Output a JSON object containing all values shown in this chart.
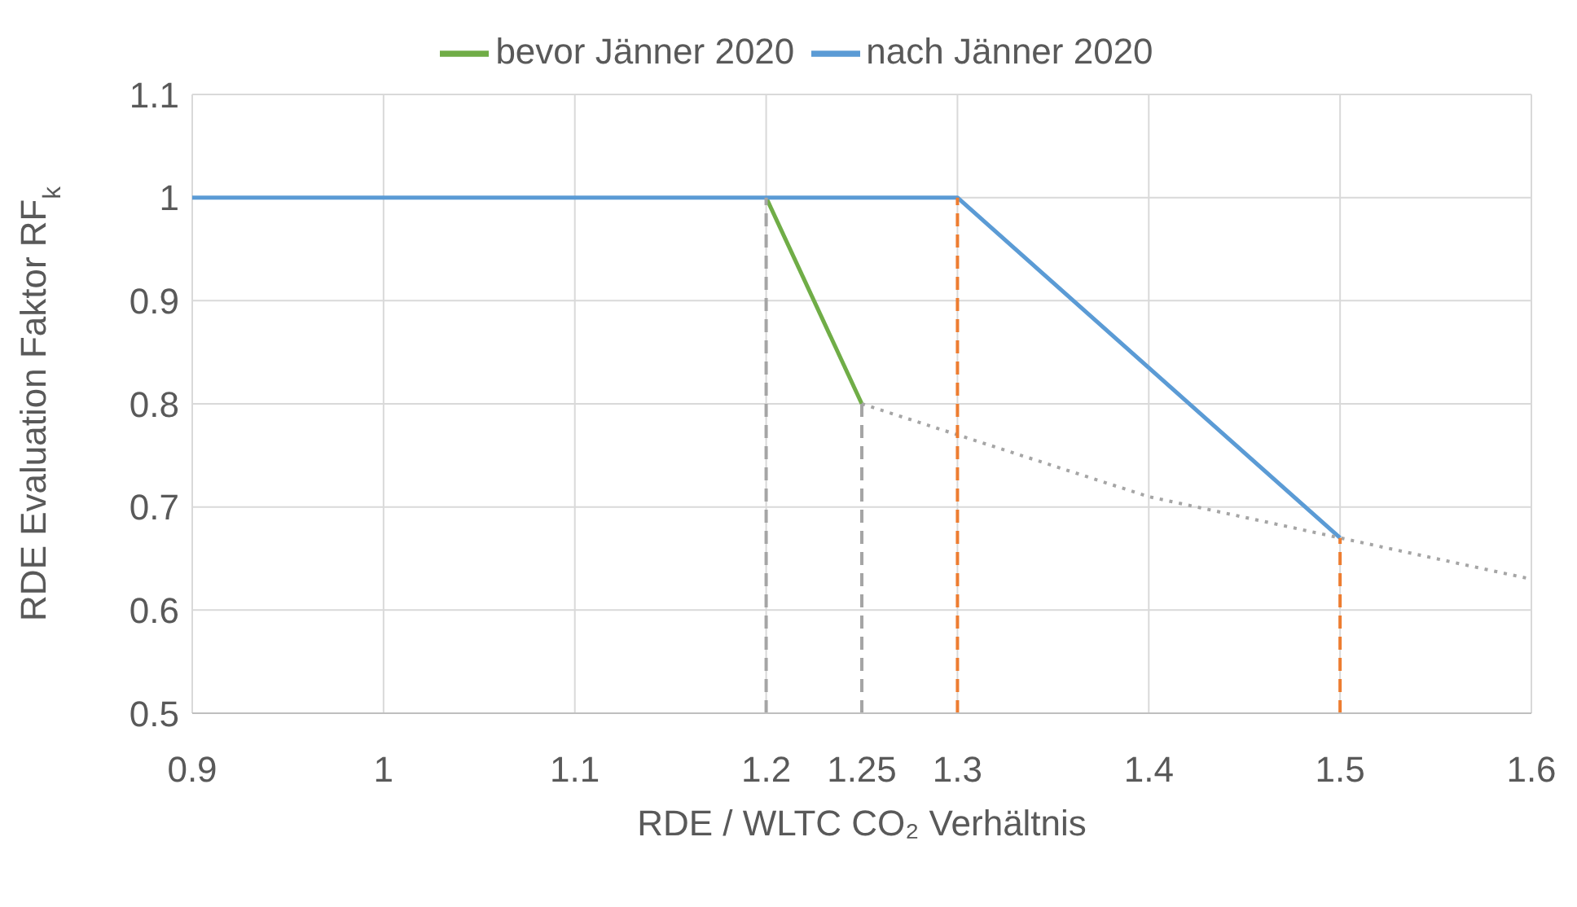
{
  "chart_data": {
    "type": "line",
    "xlabel": "RDE / WLTC CO₂ Verhältnis",
    "ylabel": "RDE Evaluation Faktor RF$_{k}$",
    "series": [
      {
        "name": "bevor Jänner 2020",
        "color": "#70ad47",
        "x": [
          1.2,
          1.25
        ],
        "values": [
          1,
          0.8
        ]
      },
      {
        "name": "nach Jänner 2020",
        "color": "#5b9bd5",
        "x": [
          0.9,
          1.3,
          1.5
        ],
        "values": [
          1,
          1,
          0.67
        ]
      },
      {
        "color": "#a5a5a5",
        "line_style": "dotted",
        "x": [
          1.25,
          1.3,
          1.35,
          1.4,
          1.45,
          1.5,
          1.55,
          1.6
        ],
        "values": [
          0.8,
          0.77,
          0.74,
          0.71,
          0.69,
          0.67,
          0.65,
          0.63
        ]
      },
      {
        "color": "#a5a5a5",
        "line_style": "dashed",
        "x": [
          1.2,
          1.2
        ],
        "values": [
          0.5,
          1
        ]
      },
      {
        "color": "#a5a5a5",
        "line_style": "dashed",
        "x": [
          1.25,
          1.25
        ],
        "values": [
          0.5,
          0.8
        ]
      },
      {
        "color": "#ed7d31",
        "line_style": "dashed",
        "x": [
          1.3,
          1.3
        ],
        "values": [
          0.5,
          1
        ]
      },
      {
        "color": "#ed7d31",
        "line_style": "dashed",
        "x": [
          1.5,
          1.5
        ],
        "values": [
          0.5,
          0.67
        ]
      }
    ],
    "xlim": [
      0.9,
      1.6
    ],
    "xticks": [
      0.9,
      1,
      1.1,
      1.2,
      {
        "value": 1.25,
        "label": "1.25"
      },
      1.3,
      1.4,
      1.5,
      1.6
    ],
    "ylim": [
      0.5,
      1.1
    ],
    "yticks": [
      0.5,
      0.6,
      0.7,
      0.8,
      0.9,
      1,
      1.1
    ],
    "grid": true,
    "legend": "top",
    "line_style": "solid"
  }
}
